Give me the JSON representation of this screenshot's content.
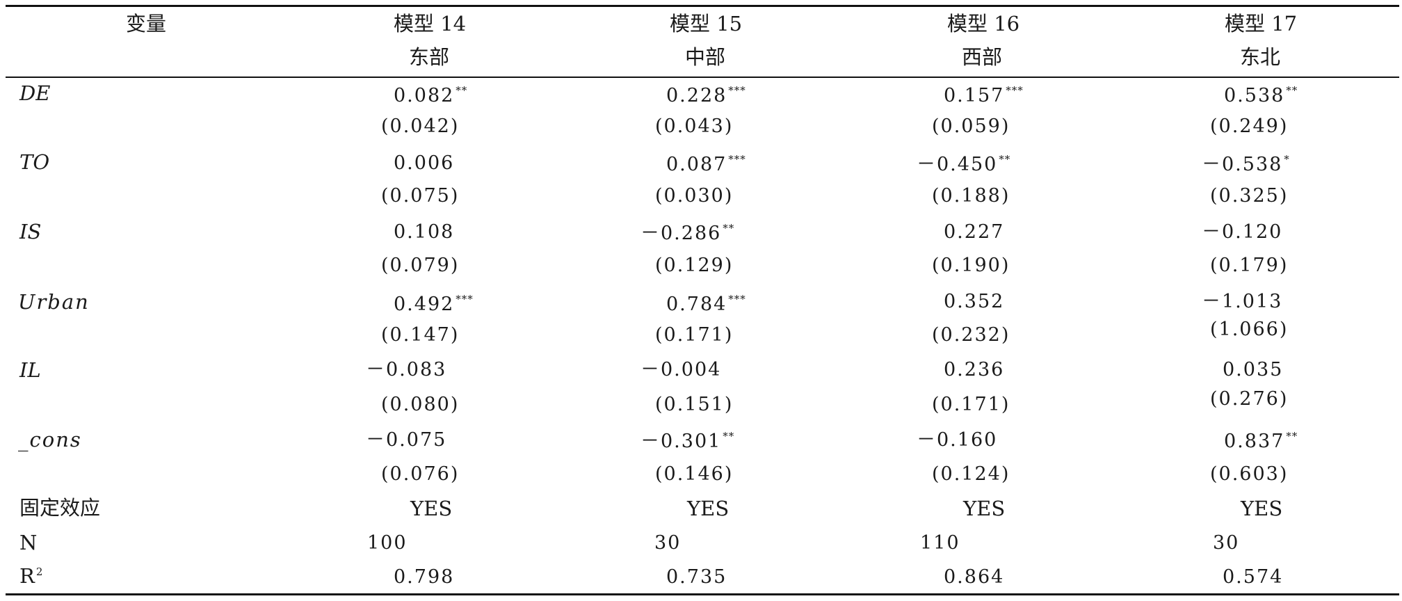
{
  "header": {
    "var_label": "变量",
    "models": [
      {
        "name": "模型 14",
        "region": "东部"
      },
      {
        "name": "模型 15",
        "region": "中部"
      },
      {
        "name": "模型 16",
        "region": "西部"
      },
      {
        "name": "模型 17",
        "region": "东北"
      }
    ]
  },
  "rows": [
    {
      "label": "DE",
      "coef": [
        {
          "v": "0.082",
          "s": "**"
        },
        {
          "v": "0.228",
          "s": "***"
        },
        {
          "v": "0.157",
          "s": "***"
        },
        {
          "v": "0.538",
          "s": "**"
        }
      ],
      "se": [
        "(0.042)",
        "(0.043)",
        "(0.059)",
        "(0.249)"
      ]
    },
    {
      "label": "TO",
      "coef": [
        {
          "v": "0.006",
          "s": ""
        },
        {
          "v": "0.087",
          "s": "***"
        },
        {
          "v": "－0.450",
          "s": "**"
        },
        {
          "v": "－0.538",
          "s": "*"
        }
      ],
      "se": [
        "(0.075)",
        "(0.030)",
        "(0.188)",
        "(0.325)"
      ]
    },
    {
      "label": "IS",
      "coef": [
        {
          "v": "0.108",
          "s": ""
        },
        {
          "v": "－0.286",
          "s": "**"
        },
        {
          "v": "0.227",
          "s": ""
        },
        {
          "v": "－0.120",
          "s": ""
        }
      ],
      "se": [
        "(0.079)",
        "(0.129)",
        "(0.190)",
        "(0.179)"
      ]
    },
    {
      "label": "Urban",
      "coef": [
        {
          "v": "0.492",
          "s": "***"
        },
        {
          "v": "0.784",
          "s": "***"
        },
        {
          "v": "0.352",
          "s": ""
        },
        {
          "v": "－1.013",
          "s": ""
        }
      ],
      "se": [
        "(0.147)",
        "(0.171)",
        "(0.232)",
        "(1.066)"
      ]
    },
    {
      "label": "IL",
      "coef": [
        {
          "v": "－0.083",
          "s": ""
        },
        {
          "v": "－0.004",
          "s": ""
        },
        {
          "v": "0.236",
          "s": ""
        },
        {
          "v": "0.035",
          "s": ""
        }
      ],
      "se": [
        "(0.080)",
        "(0.151)",
        "(0.171)",
        "(0.276)"
      ]
    },
    {
      "label": "_cons",
      "coef": [
        {
          "v": "－0.075",
          "s": ""
        },
        {
          "v": "－0.301",
          "s": "**"
        },
        {
          "v": "－0.160",
          "s": ""
        },
        {
          "v": "0.837",
          "s": "**"
        }
      ],
      "se": [
        "(0.076)",
        "(0.146)",
        "(0.124)",
        "(0.603)"
      ]
    }
  ],
  "fixed_effects": {
    "label": "固定效应",
    "values": [
      "YES",
      "YES",
      "YES",
      "YES"
    ]
  },
  "n_row": {
    "label": "N",
    "values": [
      "100",
      "30",
      "110",
      "30"
    ]
  },
  "r2_row": {
    "label": "R",
    "label_sup": "2",
    "values": [
      "0.798",
      "0.735",
      "0.864",
      "0.574"
    ]
  }
}
